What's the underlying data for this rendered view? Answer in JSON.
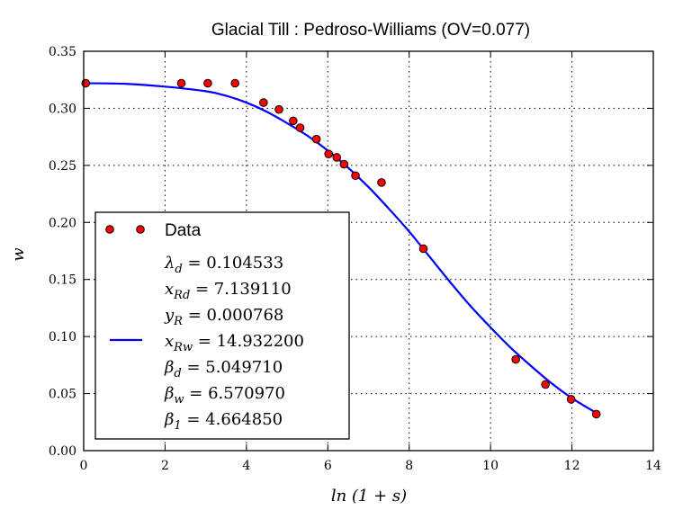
{
  "chart_data": {
    "type": "scatter",
    "title": "Glacial Till : Pedroso-Williams (OV=0.077)",
    "xlabel": "ln (1 + s)",
    "ylabel": "w",
    "xlim": [
      0,
      14
    ],
    "ylim": [
      0.0,
      0.35
    ],
    "xticks": [
      0,
      2,
      4,
      6,
      8,
      10,
      12,
      14
    ],
    "yticks": [
      0.0,
      0.05,
      0.1,
      0.15,
      0.2,
      0.25,
      0.3,
      0.35
    ],
    "grid": true,
    "legend_position": "lower-left",
    "series": [
      {
        "name": "Data",
        "kind": "scatter",
        "color": "#ff0000",
        "x": [
          0.05,
          2.4,
          3.05,
          3.72,
          4.42,
          4.8,
          5.15,
          5.32,
          5.72,
          6.02,
          6.22,
          6.4,
          6.68,
          7.32,
          8.35,
          10.62,
          11.35,
          11.98,
          12.6
        ],
        "y": [
          0.322,
          0.322,
          0.322,
          0.322,
          0.305,
          0.299,
          0.289,
          0.283,
          0.273,
          0.26,
          0.257,
          0.251,
          0.241,
          0.235,
          0.177,
          0.08,
          0.058,
          0.045,
          0.032
        ]
      },
      {
        "name": "",
        "kind": "line",
        "color": "#0000ff",
        "x": [
          0,
          1,
          2,
          3,
          3.5,
          4,
          4.5,
          5,
          5.5,
          6,
          6.5,
          7,
          7.5,
          8,
          8.5,
          9,
          9.5,
          10,
          10.5,
          11,
          11.5,
          12,
          12.6
        ],
        "y": [
          0.322,
          0.3215,
          0.319,
          0.315,
          0.311,
          0.305,
          0.297,
          0.287,
          0.276,
          0.263,
          0.248,
          0.231,
          0.212,
          0.192,
          0.17,
          0.148,
          0.127,
          0.108,
          0.09,
          0.074,
          0.059,
          0.046,
          0.033
        ]
      }
    ],
    "legend": {
      "data_label": "Data",
      "params": [
        {
          "sym": "λ",
          "sub": "d",
          "value": "0.104533"
        },
        {
          "sym": "x",
          "sub": "Rd",
          "value": "7.139110"
        },
        {
          "sym": "y",
          "sub": "R",
          "value": "0.000768"
        },
        {
          "sym": "x",
          "sub": "Rw",
          "value": "14.932200"
        },
        {
          "sym": "β",
          "sub": "d",
          "value": "5.049710"
        },
        {
          "sym": "β",
          "sub": "w",
          "value": "6.570970"
        },
        {
          "sym": "β",
          "sub": "1",
          "value": "4.664850"
        }
      ]
    }
  }
}
